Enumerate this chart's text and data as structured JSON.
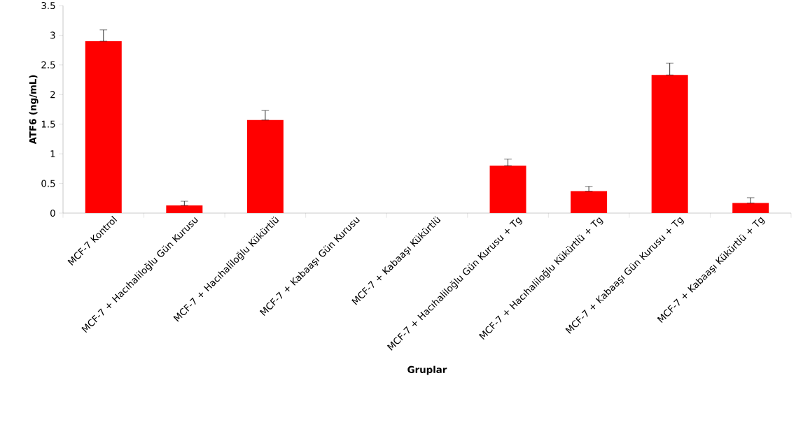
{
  "chart_data": {
    "type": "bar",
    "xlabel": "Gruplar",
    "ylabel": "ATF6 (ng/mL)",
    "categories": [
      "MCF-7 Kontrol",
      "MCF-7 + Hacıhaliloğlu Gün Kurusu",
      "MCF-7 + Hacıhaliloğlu Kükürtlü",
      "MCF-7 + Kabaaşı Gün Kurusu",
      "MCF-7 + Kabaaşı Kükürtlü",
      "MCF-7 + Hacıhaliloğlu Gün Kurusu + Tg",
      "MCF-7 + Hacıhaliloğlu Kükürtlü + Tg",
      "MCF-7 + Kabaaşı Gün Kurusu + Tg",
      "MCF-7 + Kabaaşı Kükürtlü + Tg"
    ],
    "values": [
      2.9,
      0.13,
      1.57,
      null,
      null,
      0.8,
      0.37,
      2.33,
      0.17
    ],
    "errors": [
      [
        2.9,
        3.09
      ],
      [
        0.13,
        0.2
      ],
      [
        1.57,
        1.73
      ],
      null,
      null,
      [
        0.8,
        0.91
      ],
      [
        0.37,
        0.45
      ],
      [
        2.33,
        2.53
      ],
      [
        0.17,
        0.26
      ]
    ],
    "color": "#ff0000",
    "ylim": [
      0,
      3.5
    ],
    "yticks": [
      0,
      0.5,
      1,
      1.5,
      2,
      2.5,
      3,
      3.5
    ],
    "grid": false
  }
}
